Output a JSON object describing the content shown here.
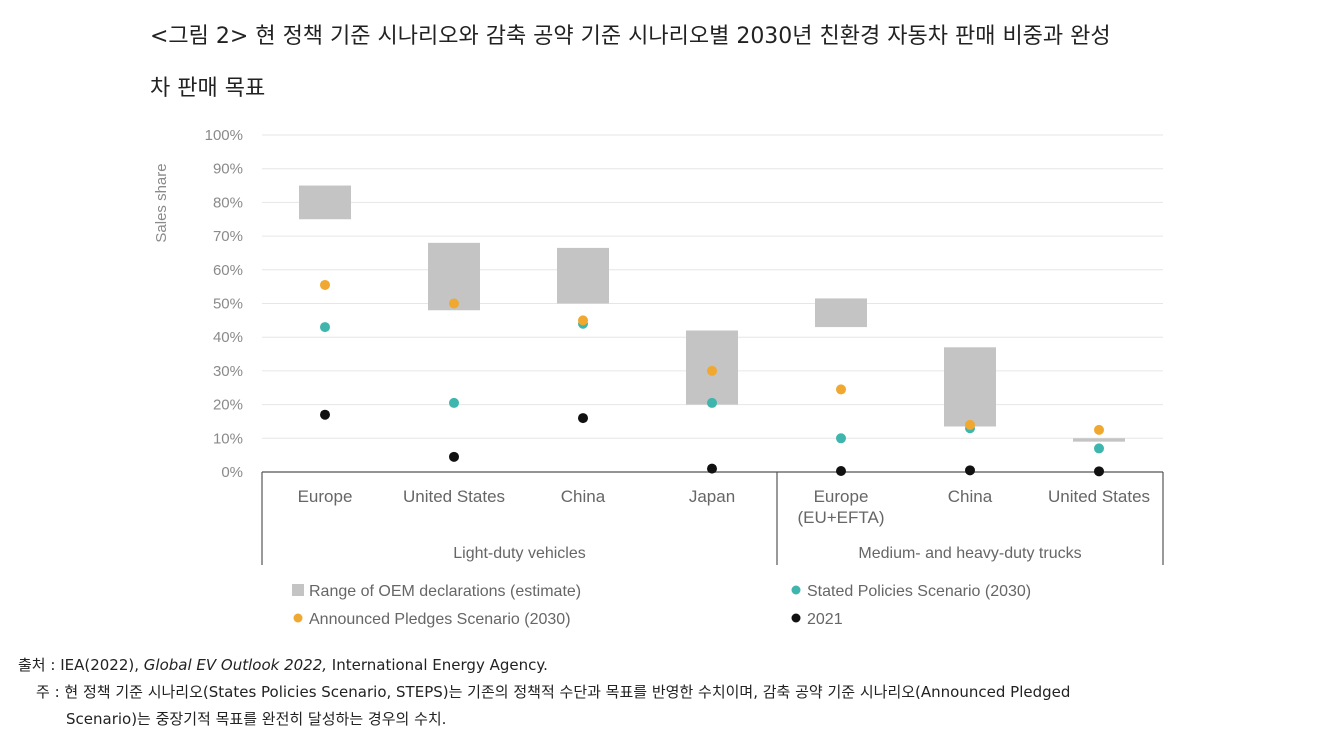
{
  "title_line1": "<그림 2> 현 정책 기준 시나리오와 감축 공약 기준 시나리오별 2030년 친환경 자동차 판매 비중과 완성",
  "title_line2": "차 판매 목표",
  "source": {
    "label": "출처 : ",
    "prefix": "IEA(2022), ",
    "italic": "Global EV Outlook 2022,",
    "suffix": " International Energy Agency."
  },
  "note": {
    "label": "주 : ",
    "line1": "현 정책 기준 시나리오(States Policies Scenario, STEPS)는 기존의 정책적 수단과 목표를 반영한 수치이며, 감축 공약 기준 시나리오(Announced Pledged",
    "line2": "Scenario)는 중장기적 목표를 완전히 달성하는 경우의 수치."
  },
  "colors": {
    "range": "#c4c4c4",
    "steps": "#3eb5ad",
    "aps": "#f0a830",
    "y2021": "#111111",
    "grid": "#e6e6e6",
    "axis": "#555555"
  },
  "chart_data": {
    "type": "scatter",
    "ylabel": "Sales share",
    "ylim": [
      0,
      100
    ],
    "yticks": [
      "0%",
      "10%",
      "20%",
      "30%",
      "40%",
      "50%",
      "60%",
      "70%",
      "80%",
      "90%",
      "100%"
    ],
    "groups": [
      {
        "name": "Light-duty vehicles",
        "categories": [
          "Europe",
          "United States",
          "China",
          "Japan"
        ]
      },
      {
        "name": "Medium- and heavy-duty trucks",
        "categories": [
          "Europe\n(EU+EFTA)",
          "China",
          "United States"
        ]
      }
    ],
    "categories": [
      "Europe",
      "United States",
      "China",
      "Japan",
      "Europe\n(EU+EFTA)",
      "China",
      "United States"
    ],
    "oem_range": [
      [
        75,
        85
      ],
      [
        48,
        68
      ],
      [
        50,
        66.5
      ],
      [
        20,
        42
      ],
      [
        43,
        51.5
      ],
      [
        13.5,
        37
      ],
      [
        9,
        10
      ]
    ],
    "series": [
      {
        "name": "Stated Policies Scenario (2030)",
        "values": [
          43,
          20.5,
          44,
          20.5,
          10,
          13,
          7
        ]
      },
      {
        "name": "Announced Pledges Scenario (2030)",
        "values": [
          55.5,
          50,
          45,
          30,
          24.5,
          14,
          12.5
        ]
      },
      {
        "name": "2021",
        "values": [
          17,
          4.5,
          16,
          1,
          0.3,
          0.5,
          0.2
        ]
      }
    ],
    "legend": [
      {
        "label": "Range of OEM declarations (estimate)",
        "marker": "square",
        "key": "range"
      },
      {
        "label": "Stated Policies Scenario (2030)",
        "marker": "dot",
        "key": "steps"
      },
      {
        "label": "Announced Pledges Scenario (2030)",
        "marker": "dot",
        "key": "aps"
      },
      {
        "label": "2021",
        "marker": "dot",
        "key": "y2021"
      }
    ],
    "legend_position": "bottom",
    "grid": true
  }
}
